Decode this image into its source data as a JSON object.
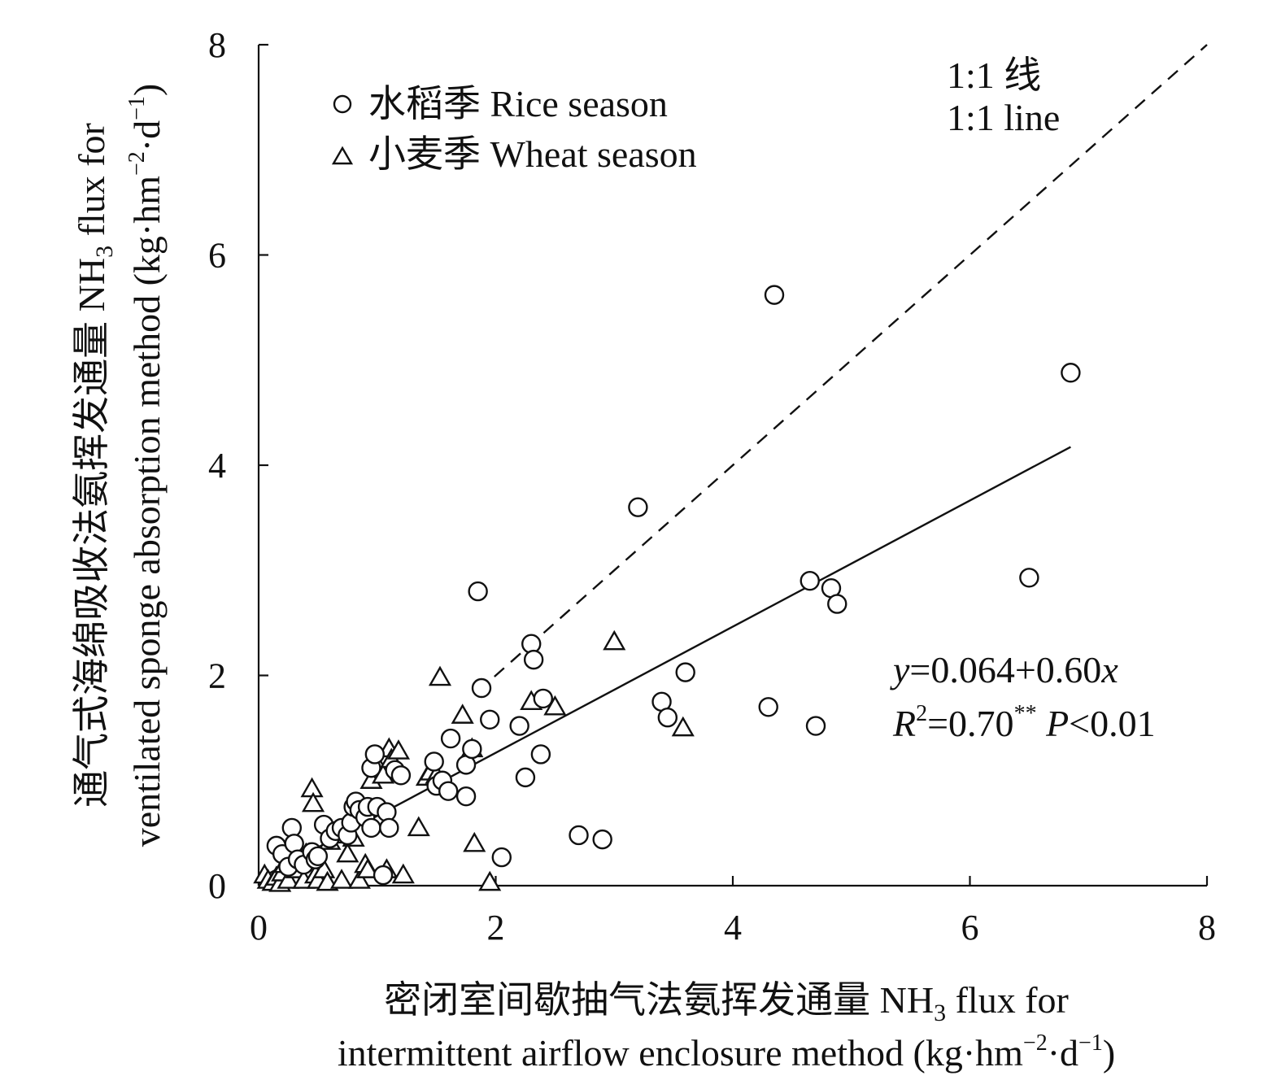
{
  "chart_data": {
    "type": "scatter",
    "xlabel": {
      "line1_prefix": "密闭室间歇抽气法氨挥发通量 NH",
      "line1_sub": "3",
      "line1_suffix": " flux for",
      "line2_prefix": "intermittent airflow enclosure method (kg·hm",
      "line2_sup1": "−2",
      "line2_mid": "·d",
      "line2_sup2": "−1",
      "line2_suffix": ")"
    },
    "ylabel": {
      "line1_prefix": "通气式海绵吸收法氨挥发通量 NH",
      "line1_sub": "3",
      "line1_suffix": " flux for",
      "line2_prefix": "ventilated sponge absorption method (kg·hm",
      "line2_sup1": "−2",
      "line2_mid": "·d",
      "line2_sup2": "−1",
      "line2_suffix": ")"
    },
    "xlim": [
      0,
      8
    ],
    "ylim": [
      0,
      8
    ],
    "xticks": [
      "0",
      "2",
      "4",
      "6",
      "8"
    ],
    "yticks": [
      "0",
      "2",
      "4",
      "6",
      "8"
    ],
    "grid": false,
    "legend_position": "top-left",
    "series": [
      {
        "name": "水稻季 Rice season",
        "marker": "circle",
        "points": [
          [
            0.15,
            0.38
          ],
          [
            0.2,
            0.3
          ],
          [
            0.25,
            0.18
          ],
          [
            0.28,
            0.55
          ],
          [
            0.3,
            0.4
          ],
          [
            0.33,
            0.25
          ],
          [
            0.38,
            0.2
          ],
          [
            0.45,
            0.32
          ],
          [
            0.48,
            0.25
          ],
          [
            0.5,
            0.28
          ],
          [
            0.55,
            0.58
          ],
          [
            0.6,
            0.45
          ],
          [
            0.65,
            0.52
          ],
          [
            0.7,
            0.55
          ],
          [
            0.75,
            0.48
          ],
          [
            0.78,
            0.6
          ],
          [
            0.8,
            0.75
          ],
          [
            0.82,
            0.8
          ],
          [
            0.85,
            0.72
          ],
          [
            0.9,
            0.65
          ],
          [
            0.92,
            0.75
          ],
          [
            0.95,
            0.55
          ],
          [
            0.95,
            1.12
          ],
          [
            0.98,
            1.25
          ],
          [
            1.0,
            0.75
          ],
          [
            1.05,
            0.1
          ],
          [
            1.08,
            0.7
          ],
          [
            1.1,
            0.55
          ],
          [
            1.15,
            1.1
          ],
          [
            1.2,
            1.05
          ],
          [
            1.48,
            1.18
          ],
          [
            1.5,
            0.95
          ],
          [
            1.55,
            1.0
          ],
          [
            1.6,
            0.9
          ],
          [
            1.62,
            1.4
          ],
          [
            1.75,
            0.85
          ],
          [
            1.75,
            1.15
          ],
          [
            1.8,
            1.3
          ],
          [
            1.85,
            2.8
          ],
          [
            1.88,
            1.88
          ],
          [
            1.95,
            1.58
          ],
          [
            2.05,
            0.27
          ],
          [
            2.2,
            1.52
          ],
          [
            2.25,
            1.03
          ],
          [
            2.3,
            2.3
          ],
          [
            2.32,
            2.15
          ],
          [
            2.38,
            1.25
          ],
          [
            2.4,
            1.78
          ],
          [
            2.7,
            0.48
          ],
          [
            2.9,
            0.44
          ],
          [
            3.2,
            3.6
          ],
          [
            3.4,
            1.75
          ],
          [
            3.45,
            1.6
          ],
          [
            3.6,
            2.03
          ],
          [
            4.3,
            1.7
          ],
          [
            4.35,
            5.62
          ],
          [
            4.65,
            2.9
          ],
          [
            4.7,
            1.52
          ],
          [
            4.83,
            2.83
          ],
          [
            4.88,
            2.68
          ],
          [
            6.5,
            2.93
          ],
          [
            6.85,
            4.88
          ]
        ]
      },
      {
        "name": "小麦季 Wheat season",
        "marker": "triangle",
        "points": [
          [
            0.05,
            0.1
          ],
          [
            0.08,
            0.05
          ],
          [
            0.12,
            0.03
          ],
          [
            0.15,
            0.08
          ],
          [
            0.18,
            0.02
          ],
          [
            0.2,
            0.12
          ],
          [
            0.22,
            0.2
          ],
          [
            0.25,
            0.05
          ],
          [
            0.28,
            0.3
          ],
          [
            0.3,
            0.38
          ],
          [
            0.32,
            0.15
          ],
          [
            0.35,
            0.22
          ],
          [
            0.38,
            0.05
          ],
          [
            0.4,
            0.3
          ],
          [
            0.42,
            0.25
          ],
          [
            0.45,
            0.92
          ],
          [
            0.46,
            0.78
          ],
          [
            0.48,
            0.1
          ],
          [
            0.5,
            0.05
          ],
          [
            0.55,
            0.15
          ],
          [
            0.58,
            0.03
          ],
          [
            0.6,
            0.42
          ],
          [
            0.65,
            0.48
          ],
          [
            0.7,
            0.05
          ],
          [
            0.75,
            0.3
          ],
          [
            0.8,
            0.45
          ],
          [
            0.85,
            0.05
          ],
          [
            0.9,
            0.2
          ],
          [
            0.92,
            0.15
          ],
          [
            0.95,
            1.0
          ],
          [
            1.0,
            1.15
          ],
          [
            1.05,
            1.05
          ],
          [
            1.08,
            0.15
          ],
          [
            1.1,
            1.3
          ],
          [
            1.12,
            1.2
          ],
          [
            1.18,
            1.28
          ],
          [
            1.22,
            0.1
          ],
          [
            1.35,
            0.55
          ],
          [
            1.42,
            1.03
          ],
          [
            1.45,
            1.08
          ],
          [
            1.5,
            1.05
          ],
          [
            1.53,
            1.98
          ],
          [
            1.72,
            1.62
          ],
          [
            1.8,
            1.3
          ],
          [
            1.82,
            0.4
          ],
          [
            1.95,
            0.03
          ],
          [
            2.3,
            1.75
          ],
          [
            2.5,
            1.7
          ],
          [
            3.0,
            2.32
          ],
          [
            3.58,
            1.5
          ]
        ]
      }
    ],
    "fit_line": {
      "intercept": 0.064,
      "slope": 0.6,
      "x_range": [
        0.03,
        6.85
      ]
    },
    "ref_line": {
      "label_line1": "1:1 线",
      "label_line2": "1:1 line",
      "x_range": [
        1.85,
        8
      ]
    },
    "equation": {
      "line1_y": "y",
      "line1_rest": "=0.064+0.60",
      "line1_x": "x",
      "line2_r": "R",
      "line2_sup": "2",
      "line2_eq": "=0.70",
      "line2_stars": "**",
      "line2_p": " P",
      "line2_tail": "<0.01"
    },
    "colors": {
      "ink": "#111111",
      "marker_fill": "#ffffff",
      "background": "#ffffff"
    }
  }
}
